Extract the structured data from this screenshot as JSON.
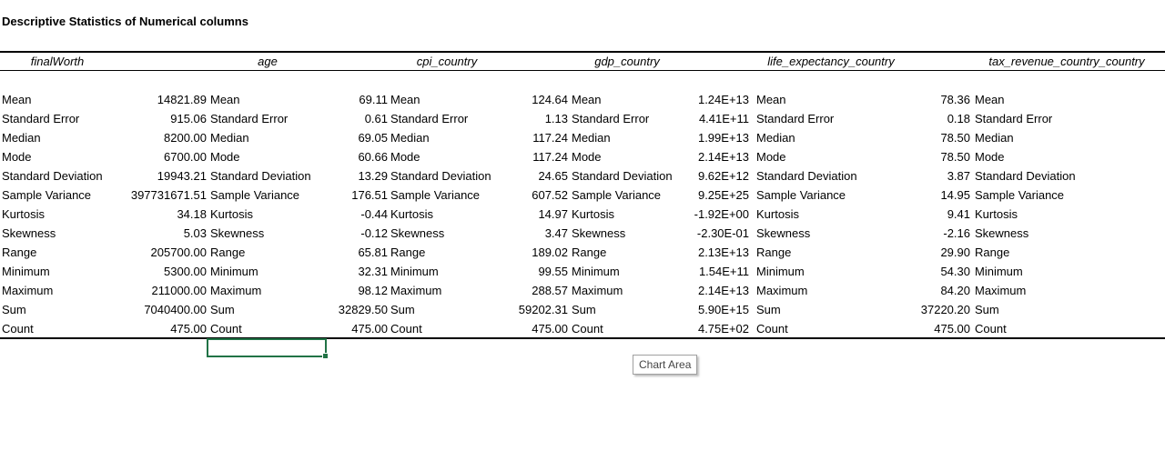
{
  "title": "Descriptive Statistics of Numerical columns",
  "row_labels": [
    "Mean",
    "Standard Error",
    "Median",
    "Mode",
    "Standard Deviation",
    "Sample Variance",
    "Kurtosis",
    "Skewness",
    "Range",
    "Minimum",
    "Maximum",
    "Sum",
    "Count"
  ],
  "columns": [
    {
      "header": "finalWorth",
      "values": [
        "14821.89",
        "915.06",
        "8200.00",
        "6700.00",
        "19943.21",
        "397731671.51",
        "34.18",
        "5.03",
        "205700.00",
        "5300.00",
        "211000.00",
        "7040400.00",
        "475.00"
      ]
    },
    {
      "header": "age",
      "values": [
        "69.11",
        "0.61",
        "69.05",
        "60.66",
        "13.29",
        "176.51",
        "-0.44",
        "-0.12",
        "65.81",
        "32.31",
        "98.12",
        "32829.50",
        "475.00"
      ]
    },
    {
      "header": "cpi_country",
      "values": [
        "124.64",
        "1.13",
        "117.24",
        "117.24",
        "24.65",
        "607.52",
        "14.97",
        "3.47",
        "189.02",
        "99.55",
        "288.57",
        "59202.31",
        "475.00"
      ]
    },
    {
      "header": "gdp_country",
      "values": [
        "1.24E+13",
        "4.41E+11",
        "1.99E+13",
        "2.14E+13",
        "9.62E+12",
        "9.25E+25",
        "-1.92E+00",
        "-2.30E-01",
        "2.13E+13",
        "1.54E+11",
        "2.14E+13",
        "5.90E+15",
        "4.75E+02"
      ]
    },
    {
      "header": "life_expectancy_country",
      "values": [
        "78.36",
        "0.18",
        "78.50",
        "78.50",
        "3.87",
        "14.95",
        "9.41",
        "-2.16",
        "29.90",
        "54.30",
        "84.20",
        "37220.20",
        "475.00"
      ]
    },
    {
      "header": "tax_revenue_country_country",
      "values": []
    }
  ],
  "tooltip": "Chart Area"
}
